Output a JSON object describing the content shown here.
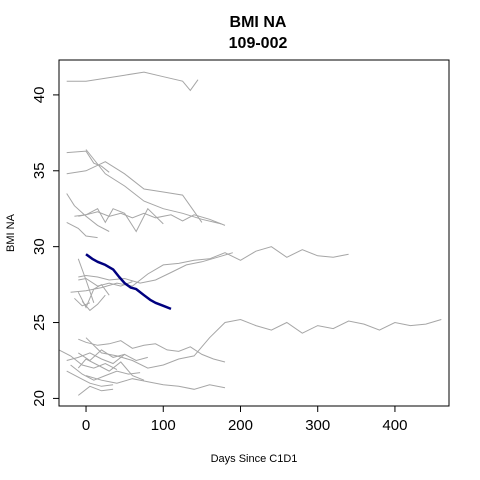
{
  "chart_data": {
    "type": "line",
    "title": "BMI NA",
    "subtitle": "109-002",
    "xlabel": "Days Since C1D1",
    "ylabel": "BMI NA",
    "xlim": [
      -35,
      470
    ],
    "ylim": [
      19.5,
      42.3
    ],
    "x_ticks": [
      0,
      100,
      200,
      300,
      400
    ],
    "y_ticks": [
      20,
      25,
      30,
      35,
      40
    ],
    "grid": false,
    "highlight_color": "#00007F",
    "background_color": "#A6A6A6",
    "highlight": {
      "name": "109-002",
      "x": [
        0,
        8,
        15,
        25,
        35,
        43,
        50,
        58,
        65,
        75,
        83,
        90,
        100,
        110
      ],
      "y": [
        29.5,
        29.2,
        29.0,
        28.8,
        28.5,
        28.0,
        27.6,
        27.3,
        27.2,
        26.8,
        26.5,
        26.3,
        26.1,
        25.9
      ]
    },
    "series": [
      {
        "x": [
          -25,
          0,
          25,
          50,
          75,
          100,
          125,
          135,
          145
        ],
        "y": [
          40.9,
          40.9,
          41.1,
          41.3,
          41.5,
          41.2,
          40.9,
          40.3,
          41.0
        ]
      },
      {
        "x": [
          -25,
          0,
          10,
          20,
          30
        ],
        "y": [
          36.2,
          36.3,
          35.5,
          35.3,
          34.9
        ]
      },
      {
        "x": [
          -25,
          0,
          25,
          50,
          75,
          100,
          125,
          150
        ],
        "y": [
          34.8,
          35.0,
          35.6,
          34.8,
          33.8,
          33.6,
          33.4,
          31.6
        ]
      },
      {
        "x": [
          0,
          25,
          50,
          75,
          100,
          125,
          150,
          175
        ],
        "y": [
          36.4,
          34.8,
          34.0,
          33.0,
          32.5,
          32.2,
          31.8,
          31.5
        ]
      },
      {
        "x": [
          -25,
          -15,
          0,
          15,
          30
        ],
        "y": [
          33.5,
          32.7,
          32.0,
          31.4,
          31.0
        ]
      },
      {
        "x": [
          -15,
          0,
          15,
          25,
          35,
          50,
          65,
          80,
          100
        ],
        "y": [
          32.0,
          32.1,
          32.5,
          31.6,
          32.5,
          32.2,
          31.0,
          32.5,
          31.5
        ]
      },
      {
        "x": [
          -10,
          0,
          15,
          30,
          45,
          60,
          75,
          90,
          110,
          125,
          140,
          160,
          180
        ],
        "y": [
          32.0,
          32.1,
          32.3,
          32.0,
          32.2,
          31.9,
          32.2,
          31.9,
          32.1,
          31.7,
          32.1,
          31.8,
          31.4
        ]
      },
      {
        "x": [
          -25,
          -10,
          0,
          15
        ],
        "y": [
          31.6,
          31.2,
          30.7,
          30.6
        ]
      },
      {
        "x": [
          -20,
          0,
          20,
          40,
          60,
          80,
          100,
          120,
          140,
          160,
          180,
          200,
          220,
          240,
          260,
          280,
          300,
          320,
          340
        ],
        "y": [
          27.0,
          27.1,
          27.3,
          27.6,
          27.4,
          28.2,
          28.8,
          28.9,
          29.1,
          29.2,
          29.6,
          29.1,
          29.7,
          30.0,
          29.3,
          29.8,
          29.4,
          29.3,
          29.5
        ]
      },
      {
        "x": [
          -10,
          0,
          15,
          30,
          50,
          70,
          90,
          110,
          130,
          150,
          170,
          190
        ],
        "y": [
          28.0,
          28.1,
          28.0,
          27.8,
          27.9,
          27.6,
          27.8,
          28.3,
          28.8,
          29.0,
          29.3,
          29.6
        ]
      },
      {
        "x": [
          -10,
          0,
          15,
          30,
          45,
          60
        ],
        "y": [
          27.8,
          27.9,
          27.4,
          27.6,
          27.4,
          27.7
        ]
      },
      {
        "x": [
          -10,
          0,
          10,
          20,
          30
        ],
        "y": [
          27.0,
          26.0,
          27.2,
          27.5,
          26.8
        ]
      },
      {
        "x": [
          -15,
          -5,
          5
        ],
        "y": [
          26.6,
          26.1,
          26.3
        ]
      },
      {
        "x": [
          -10,
          0,
          10
        ],
        "y": [
          29.2,
          27.8,
          26.3
        ]
      },
      {
        "x": [
          -5,
          5,
          15,
          25
        ],
        "y": [
          26.4,
          25.8,
          26.2,
          26.8
        ]
      },
      {
        "x": [
          0,
          20,
          40,
          60,
          80,
          100,
          120,
          140,
          160,
          180,
          200,
          220,
          240,
          260,
          280,
          300,
          320,
          340,
          360,
          380,
          400,
          420,
          440,
          460
        ],
        "y": [
          24.0,
          23.0,
          22.8,
          22.5,
          22.0,
          22.2,
          22.6,
          22.8,
          24.0,
          25.0,
          25.2,
          24.8,
          24.5,
          25.0,
          24.3,
          24.8,
          24.6,
          25.1,
          24.9,
          24.5,
          25.0,
          24.8,
          24.9,
          25.2
        ]
      },
      {
        "x": [
          -10,
          0,
          15,
          30,
          45,
          60,
          75,
          90,
          105,
          120,
          135,
          150,
          165,
          180
        ],
        "y": [
          23.9,
          23.7,
          23.5,
          23.6,
          23.8,
          23.3,
          23.5,
          23.6,
          23.2,
          23.1,
          23.4,
          22.9,
          22.6,
          22.4
        ]
      },
      {
        "x": [
          -10,
          5,
          20,
          35,
          50
        ],
        "y": [
          23.0,
          22.5,
          23.2,
          22.7,
          22.9
        ]
      },
      {
        "x": [
          -25,
          -10,
          5,
          20,
          35,
          50,
          65,
          80
        ],
        "y": [
          22.5,
          22.7,
          23.0,
          22.6,
          22.3,
          22.9,
          22.5,
          22.7
        ]
      },
      {
        "x": [
          -35,
          -20,
          -5,
          10,
          25,
          40
        ],
        "y": [
          23.2,
          22.8,
          22.2,
          22.0,
          22.3,
          21.9
        ]
      },
      {
        "x": [
          -10,
          0,
          15,
          30,
          45,
          60,
          75
        ],
        "y": [
          22.0,
          22.6,
          22.2,
          21.8,
          22.4,
          21.5,
          21.2
        ]
      },
      {
        "x": [
          -20,
          -5,
          10,
          25,
          40,
          55,
          70
        ],
        "y": [
          22.2,
          21.6,
          21.2,
          21.5,
          21.8,
          21.6,
          21.7
        ]
      },
      {
        "x": [
          -25,
          -10,
          5,
          20,
          35
        ],
        "y": [
          21.8,
          21.4,
          21.0,
          20.8,
          20.9
        ]
      },
      {
        "x": [
          0,
          20,
          40,
          60,
          80,
          100,
          120,
          140,
          160,
          180
        ],
        "y": [
          21.5,
          21.2,
          21.0,
          21.3,
          21.1,
          20.9,
          20.8,
          20.6,
          20.9,
          20.7
        ]
      },
      {
        "x": [
          -10,
          5,
          20,
          35
        ],
        "y": [
          20.2,
          20.8,
          20.5,
          20.6
        ]
      }
    ]
  }
}
